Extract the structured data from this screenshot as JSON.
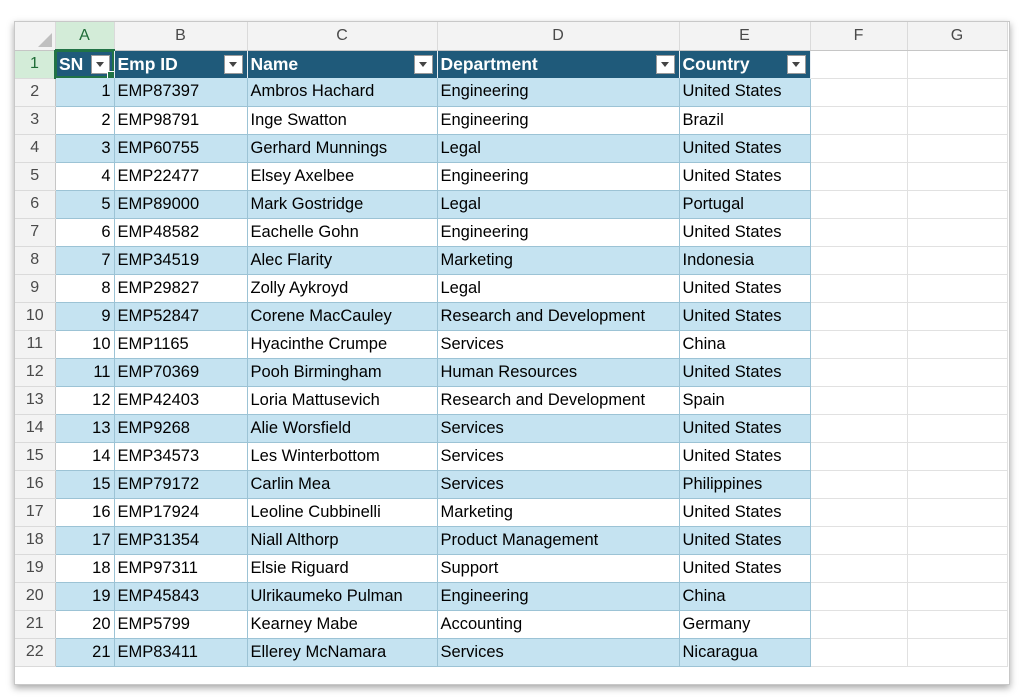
{
  "columns": [
    "A",
    "B",
    "C",
    "D",
    "E",
    "F",
    "G"
  ],
  "header_row_number": "1",
  "headers": {
    "sn": "SN",
    "emp_id": "Emp ID",
    "name": "Name",
    "department": "Department",
    "country": "Country"
  },
  "rows": [
    {
      "row": "2",
      "sn": "1",
      "emp_id": "EMP87397",
      "name": "Ambros Hachard",
      "department": "Engineering",
      "country": "United States"
    },
    {
      "row": "3",
      "sn": "2",
      "emp_id": "EMP98791",
      "name": "Inge Swatton",
      "department": "Engineering",
      "country": "Brazil"
    },
    {
      "row": "4",
      "sn": "3",
      "emp_id": "EMP60755",
      "name": "Gerhard Munnings",
      "department": "Legal",
      "country": "United States"
    },
    {
      "row": "5",
      "sn": "4",
      "emp_id": "EMP22477",
      "name": "Elsey Axelbee",
      "department": "Engineering",
      "country": "United States"
    },
    {
      "row": "6",
      "sn": "5",
      "emp_id": "EMP89000",
      "name": "Mark Gostridge",
      "department": "Legal",
      "country": "Portugal"
    },
    {
      "row": "7",
      "sn": "6",
      "emp_id": "EMP48582",
      "name": "Eachelle Gohn",
      "department": "Engineering",
      "country": "United States"
    },
    {
      "row": "8",
      "sn": "7",
      "emp_id": "EMP34519",
      "name": "Alec Flarity",
      "department": "Marketing",
      "country": "Indonesia"
    },
    {
      "row": "9",
      "sn": "8",
      "emp_id": "EMP29827",
      "name": "Zolly Aykroyd",
      "department": "Legal",
      "country": "United States"
    },
    {
      "row": "10",
      "sn": "9",
      "emp_id": "EMP52847",
      "name": "Corene MacCauley",
      "department": "Research and Development",
      "country": "United States"
    },
    {
      "row": "11",
      "sn": "10",
      "emp_id": "EMP1165",
      "name": "Hyacinthe Crumpe",
      "department": "Services",
      "country": "China"
    },
    {
      "row": "12",
      "sn": "11",
      "emp_id": "EMP70369",
      "name": "Pooh Birmingham",
      "department": "Human Resources",
      "country": "United States"
    },
    {
      "row": "13",
      "sn": "12",
      "emp_id": "EMP42403",
      "name": "Loria Mattusevich",
      "department": "Research and Development",
      "country": "Spain"
    },
    {
      "row": "14",
      "sn": "13",
      "emp_id": "EMP9268",
      "name": "Alie Worsfield",
      "department": "Services",
      "country": "United States"
    },
    {
      "row": "15",
      "sn": "14",
      "emp_id": "EMP34573",
      "name": "Les Winterbottom",
      "department": "Services",
      "country": "United States"
    },
    {
      "row": "16",
      "sn": "15",
      "emp_id": "EMP79172",
      "name": "Carlin Mea",
      "department": "Services",
      "country": "Philippines"
    },
    {
      "row": "17",
      "sn": "16",
      "emp_id": "EMP17924",
      "name": "Leoline Cubbinelli",
      "department": "Marketing",
      "country": "United States"
    },
    {
      "row": "18",
      "sn": "17",
      "emp_id": "EMP31354",
      "name": "Niall Althorp",
      "department": "Product Management",
      "country": "United States"
    },
    {
      "row": "19",
      "sn": "18",
      "emp_id": "EMP97311",
      "name": "Elsie Riguard",
      "department": "Support",
      "country": "United States"
    },
    {
      "row": "20",
      "sn": "19",
      "emp_id": "EMP45843",
      "name": "Ulrikaumeko Pulman",
      "department": "Engineering",
      "country": "China"
    },
    {
      "row": "21",
      "sn": "20",
      "emp_id": "EMP5799",
      "name": "Kearney Mabe",
      "department": "Accounting",
      "country": "Germany"
    },
    {
      "row": "22",
      "sn": "21",
      "emp_id": "EMP83411",
      "name": "Ellerey McNamara",
      "department": "Services",
      "country": "Nicaragua"
    }
  ],
  "colors": {
    "table_header": "#1f5a7a",
    "band_fill": "#c5e3f1",
    "selection_accent": "#217346"
  },
  "icons": {
    "filter": "filter-dropdown-icon",
    "select_all": "select-all-corner-icon"
  }
}
